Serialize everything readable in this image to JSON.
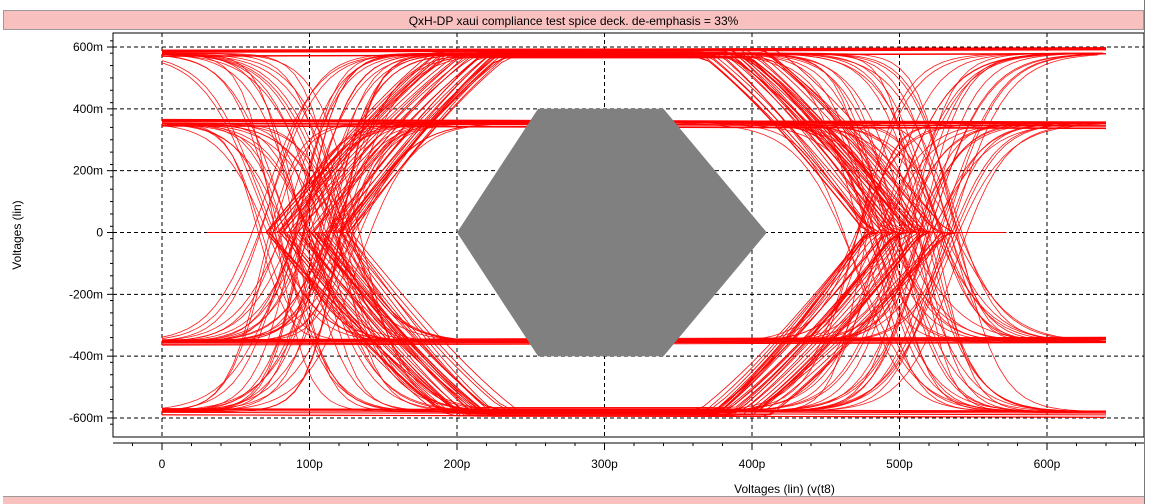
{
  "window": {
    "title": "QxH-DP xaui compliance test spice deck. de-emphasis = 33%"
  },
  "colors": {
    "trace": "#ff0000",
    "mask": "#808080",
    "title_bar": "#f9c0c0",
    "grid": "#000000"
  },
  "chart_data": {
    "type": "line",
    "subtype": "eye-diagram",
    "title": "QxH-DP xaui compliance test spice deck. de-emphasis = 33%",
    "xlabel": "Voltages (lin) (v(t8)",
    "ylabel": "Voltages (lin)",
    "xlim": [
      -30,
      680
    ],
    "ylim": [
      -640,
      660
    ],
    "x_ticks": [
      {
        "value": 0,
        "label": "0"
      },
      {
        "value": 100,
        "label": "100p"
      },
      {
        "value": 200,
        "label": "200p"
      },
      {
        "value": 300,
        "label": "300p"
      },
      {
        "value": 400,
        "label": "400p"
      },
      {
        "value": 500,
        "label": "500p"
      },
      {
        "value": 600,
        "label": "600p"
      }
    ],
    "y_ticks": [
      {
        "value": 600,
        "label": "600m"
      },
      {
        "value": 400,
        "label": "400m"
      },
      {
        "value": 200,
        "label": "200m"
      },
      {
        "value": 0,
        "label": "0"
      },
      {
        "value": -200,
        "label": "-200m"
      },
      {
        "value": -400,
        "label": "-400m"
      },
      {
        "value": -600,
        "label": "-600m"
      }
    ],
    "grid": true,
    "mask": {
      "points": [
        [
          200,
          0
        ],
        [
          255,
          400
        ],
        [
          340,
          400
        ],
        [
          410,
          0
        ],
        [
          340,
          -400
        ],
        [
          255,
          -400
        ]
      ]
    },
    "levels": {
      "high": 580,
      "high_deemph": 355,
      "low_deemph": -355,
      "low": -580
    },
    "eye_crossings": [
      100,
      505
    ],
    "x_range": [
      0,
      640
    ]
  }
}
